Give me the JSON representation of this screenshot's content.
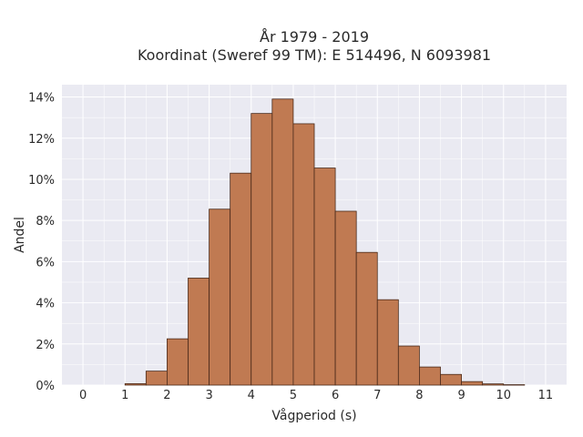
{
  "chart_data": {
    "type": "bar",
    "title_line1": "År 1979 - 2019",
    "title_line2": "Koordinat (Sweref 99 TM): E 514496, N 6093981",
    "xlabel": "Vågperiod (s)",
    "ylabel": "Andel",
    "bin_width": 0.5,
    "bins": [
      {
        "x0": 1.0,
        "value": 0.07
      },
      {
        "x0": 1.5,
        "value": 0.68
      },
      {
        "x0": 2.0,
        "value": 2.25
      },
      {
        "x0": 2.5,
        "value": 5.2
      },
      {
        "x0": 3.0,
        "value": 8.55
      },
      {
        "x0": 3.5,
        "value": 10.3
      },
      {
        "x0": 4.0,
        "value": 13.2
      },
      {
        "x0": 4.5,
        "value": 13.9
      },
      {
        "x0": 5.0,
        "value": 12.7
      },
      {
        "x0": 5.5,
        "value": 10.55
      },
      {
        "x0": 6.0,
        "value": 8.45
      },
      {
        "x0": 6.5,
        "value": 6.45
      },
      {
        "x0": 7.0,
        "value": 4.15
      },
      {
        "x0": 7.5,
        "value": 1.9
      },
      {
        "x0": 8.0,
        "value": 0.88
      },
      {
        "x0": 8.5,
        "value": 0.52
      },
      {
        "x0": 9.0,
        "value": 0.17
      },
      {
        "x0": 9.5,
        "value": 0.06
      },
      {
        "x0": 10.0,
        "value": 0.02
      }
    ],
    "xlim": [
      -0.5,
      11.5
    ],
    "ylim": [
      0,
      14.6
    ],
    "xticks": [
      0,
      1,
      2,
      3,
      4,
      5,
      6,
      7,
      8,
      9,
      10,
      11
    ],
    "yticks": [
      0,
      2,
      4,
      6,
      8,
      10,
      12,
      14
    ],
    "ytick_labels": [
      "0%",
      "2%",
      "4%",
      "6%",
      "8%",
      "10%",
      "12%",
      "14%"
    ],
    "grid": true,
    "colors": {
      "bar_fill": "#c07a52",
      "bar_edge": "#4a2a1a",
      "plot_bg": "#eaeaf2",
      "grid": "#ffffff"
    }
  }
}
